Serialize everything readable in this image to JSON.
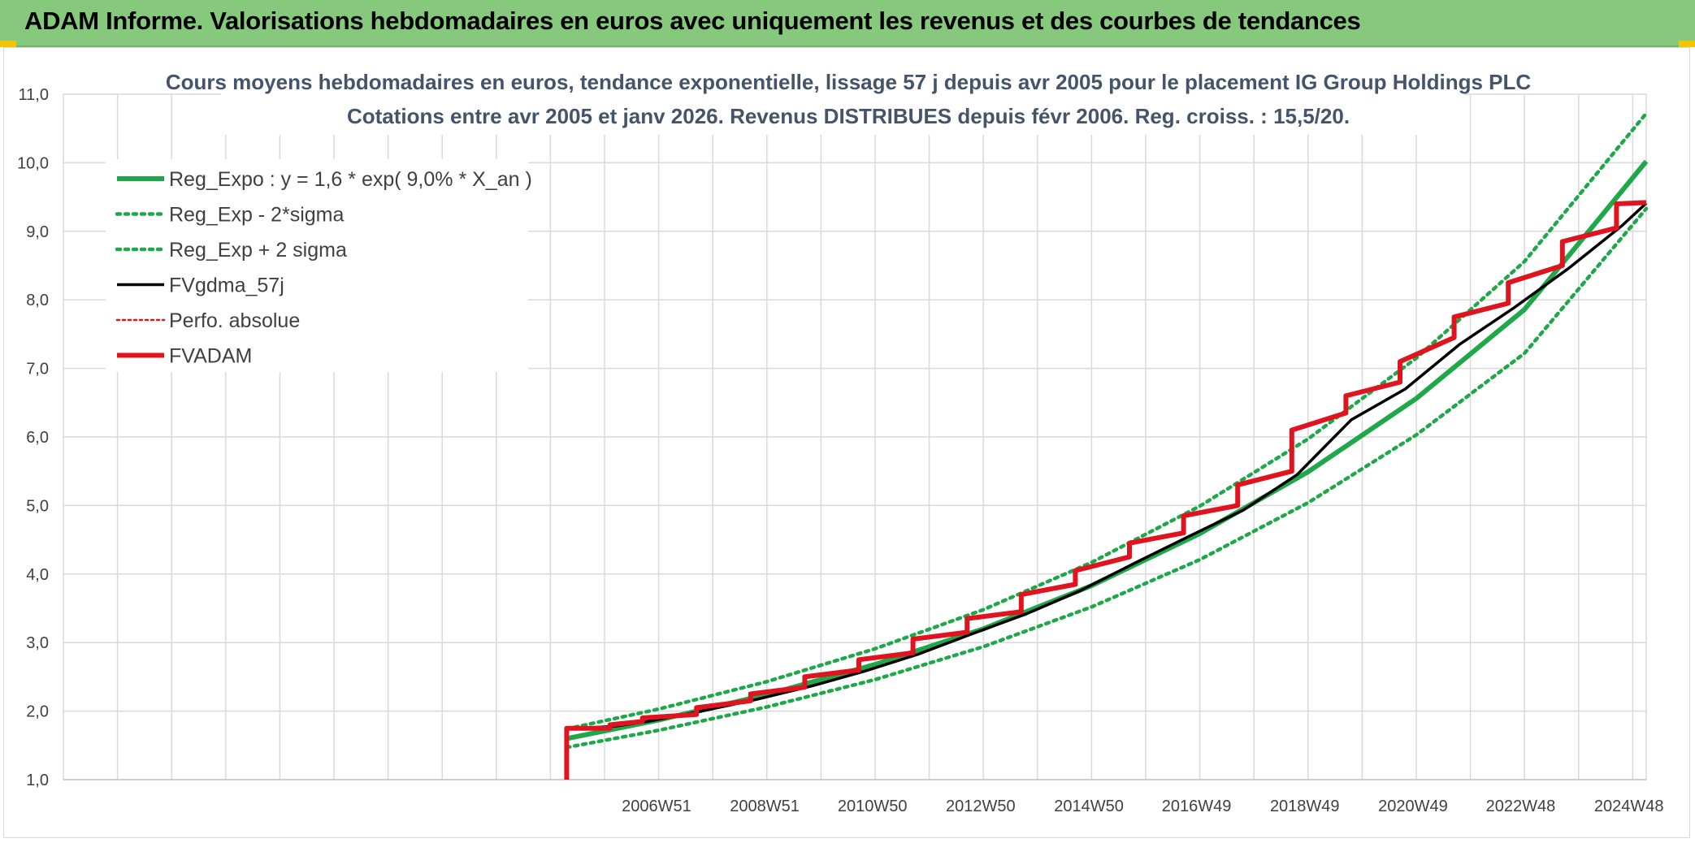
{
  "header": {
    "title": "ADAM Informe. Valorisations hebdomadaires en euros avec uniquement les revenus et des courbes de tendances"
  },
  "colors": {
    "header_bg": "#86c97c",
    "green": "#1ea84a",
    "black": "#000000",
    "red": "#e0141e",
    "grid": "#d9d9d9",
    "title": "#44546a"
  },
  "chart_data": {
    "type": "line",
    "title": "Cours moyens hebdomadaires en euros, tendance exponentielle, lissage 57 j depuis avr 2005 pour le placement IG Group Holdings PLC",
    "subtitle": "Cotations entre avr 2005 et janv 2026. Revenus DISTRIBUES depuis févr 2006. Reg. croiss. : 15,5/20.",
    "xlabel": "",
    "ylabel": "",
    "ylim": [
      1.0,
      11.0
    ],
    "xlim": [
      1996.0,
      2025.25
    ],
    "grid": true,
    "legend_position": "top-left",
    "y_ticks": [
      "1,0",
      "2,0",
      "3,0",
      "4,0",
      "5,0",
      "6,0",
      "7,0",
      "8,0",
      "9,0",
      "10,0",
      "11,0"
    ],
    "x_tick_labels": [
      {
        "label": "2006W51",
        "x": 2006.96
      },
      {
        "label": "2008W51",
        "x": 2008.96
      },
      {
        "label": "2010W50",
        "x": 2010.95
      },
      {
        "label": "2012W50",
        "x": 2012.95
      },
      {
        "label": "2014W50",
        "x": 2014.95
      },
      {
        "label": "2016W49",
        "x": 2016.94
      },
      {
        "label": "2018W49",
        "x": 2018.94
      },
      {
        "label": "2020W49",
        "x": 2020.94
      },
      {
        "label": "2022W48",
        "x": 2022.93
      },
      {
        "label": "2024W48",
        "x": 2024.93
      }
    ],
    "legend": [
      {
        "name": "Reg_Expo : y = 1,6 * exp( 9,0% *  X_an )",
        "style": "solid-thick",
        "color": "#1ea84a"
      },
      {
        "name": "Reg_Exp - 2*sigma",
        "style": "dotted",
        "color": "#1ea84a"
      },
      {
        "name": "Reg_Exp + 2 sigma",
        "style": "dotted",
        "color": "#1ea84a"
      },
      {
        "name": "FVgdma_57j",
        "style": "solid",
        "color": "#000000"
      },
      {
        "name": "Perfo. absolue",
        "style": "dotted-thin",
        "color": "#e0141e"
      },
      {
        "name": "FVADAM",
        "style": "solid-thick",
        "color": "#e0141e"
      }
    ],
    "series": [
      {
        "name": "Reg_Expo : y = 1,6 * exp( 9,0% *  X_an )",
        "x": [
          2005.3,
          2007.0,
          2009.0,
          2011.0,
          2013.0,
          2015.0,
          2017.0,
          2019.0,
          2021.0,
          2023.0,
          2025.25
        ],
        "y": [
          1.6,
          1.87,
          2.24,
          2.68,
          3.2,
          3.83,
          4.59,
          5.49,
          6.56,
          7.86,
          10.02
        ]
      },
      {
        "name": "Reg_Exp - 2*sigma",
        "x": [
          2005.3,
          2007.0,
          2009.0,
          2011.0,
          2013.0,
          2015.0,
          2017.0,
          2019.0,
          2021.0,
          2023.0,
          2025.25
        ],
        "y": [
          1.47,
          1.72,
          2.06,
          2.46,
          2.94,
          3.52,
          4.21,
          5.04,
          6.03,
          7.22,
          9.33
        ]
      },
      {
        "name": "Reg_Exp + 2 sigma",
        "x": [
          2005.3,
          2007.0,
          2009.0,
          2011.0,
          2013.0,
          2015.0,
          2017.0,
          2019.0,
          2021.0,
          2023.0,
          2025.25
        ],
        "y": [
          1.74,
          2.03,
          2.43,
          2.91,
          3.48,
          4.17,
          4.99,
          5.97,
          7.15,
          8.56,
          10.72
        ]
      },
      {
        "name": "FVADAM",
        "x": [
          2005.3,
          2005.3,
          2006.1,
          2006.1,
          2006.7,
          2006.7,
          2007.7,
          2007.7,
          2008.7,
          2008.7,
          2009.7,
          2009.7,
          2010.7,
          2010.7,
          2011.7,
          2011.7,
          2012.7,
          2012.7,
          2013.7,
          2013.7,
          2014.7,
          2014.7,
          2015.7,
          2015.7,
          2016.7,
          2016.7,
          2017.7,
          2017.7,
          2018.7,
          2018.7,
          2019.7,
          2019.7,
          2020.7,
          2020.7,
          2021.7,
          2021.7,
          2022.7,
          2022.7,
          2023.7,
          2023.7,
          2024.7,
          2024.7,
          2025.25
        ],
        "y": [
          1.0,
          1.75,
          1.75,
          1.8,
          1.85,
          1.9,
          1.95,
          2.05,
          2.15,
          2.25,
          2.35,
          2.5,
          2.6,
          2.75,
          2.85,
          3.05,
          3.15,
          3.35,
          3.45,
          3.7,
          3.85,
          4.05,
          4.25,
          4.45,
          4.6,
          4.85,
          5.0,
          5.3,
          5.5,
          6.1,
          6.35,
          6.6,
          6.8,
          7.1,
          7.45,
          7.75,
          7.95,
          8.25,
          8.5,
          8.85,
          9.05,
          9.4,
          9.42
        ]
      },
      {
        "name": "FVgdma_57j",
        "x": [
          2005.3,
          2006.2,
          2006.8,
          2007.8,
          2008.8,
          2009.8,
          2010.8,
          2011.8,
          2012.8,
          2013.8,
          2014.8,
          2015.8,
          2016.8,
          2017.8,
          2018.8,
          2019.8,
          2020.8,
          2021.8,
          2022.8,
          2023.8,
          2024.8,
          2025.25
        ],
        "y": [
          1.74,
          1.78,
          1.85,
          2.0,
          2.17,
          2.36,
          2.58,
          2.83,
          3.13,
          3.42,
          3.76,
          4.16,
          4.55,
          4.93,
          5.45,
          6.25,
          6.7,
          7.35,
          7.88,
          8.45,
          9.08,
          9.41
        ]
      }
    ]
  }
}
